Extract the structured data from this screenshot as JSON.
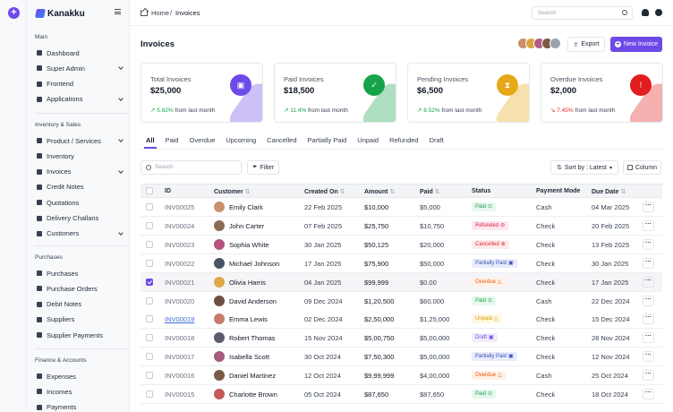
{
  "brand": {
    "name": "Kanakku"
  },
  "sidebar": {
    "sections": [
      {
        "title": "Main",
        "items": [
          {
            "label": "Dashboard",
            "chevron": false
          },
          {
            "label": "Super Admin",
            "chevron": true
          },
          {
            "label": "Frontend",
            "chevron": false
          },
          {
            "label": "Applications",
            "chevron": true
          }
        ]
      },
      {
        "title": "Inventory & Sales",
        "items": [
          {
            "label": "Product / Services",
            "chevron": true
          },
          {
            "label": "Inventory",
            "chevron": false
          },
          {
            "label": "Invoices",
            "chevron": true
          },
          {
            "label": "Credit Notes",
            "chevron": false
          },
          {
            "label": "Quotations",
            "chevron": false
          },
          {
            "label": "Delivery Challans",
            "chevron": false
          },
          {
            "label": "Customers",
            "chevron": true
          }
        ]
      },
      {
        "title": "Purchases",
        "items": [
          {
            "label": "Purchases",
            "chevron": false
          },
          {
            "label": "Purchase Orders",
            "chevron": false
          },
          {
            "label": "Debit Notes",
            "chevron": false
          },
          {
            "label": "Suppliers",
            "chevron": false
          },
          {
            "label": "Supplier Payments",
            "chevron": false
          }
        ]
      },
      {
        "title": "Finance & Accounts",
        "items": [
          {
            "label": "Expenses",
            "chevron": false
          },
          {
            "label": "Incomes",
            "chevron": false
          },
          {
            "label": "Payments",
            "chevron": false
          }
        ]
      }
    ]
  },
  "topbar": {
    "breadcrumb": {
      "home": "Home",
      "separator": "/",
      "current": "Invoices"
    },
    "search_placeholder": "Search"
  },
  "page": {
    "title": "Invoices",
    "export_label": "Export",
    "new_label": "New Invoice"
  },
  "cards": [
    {
      "label": "Total Invoices",
      "amount": "$25,000",
      "delta": "5.62%",
      "delta_text": "from last month",
      "trend": "up",
      "color": "#6d4ae8",
      "glyph": "▣"
    },
    {
      "label": "Paid Invoices",
      "amount": "$18,500",
      "delta": "11.4%",
      "delta_text": "from last month",
      "trend": "up",
      "color": "#16a34a",
      "glyph": "✓"
    },
    {
      "label": "Pending Invoices",
      "amount": "$6,500",
      "delta": "8.52%",
      "delta_text": "from last month",
      "trend": "up",
      "color": "#e6a817",
      "glyph": "⧗"
    },
    {
      "label": "Overdue Invoices",
      "amount": "$2,000",
      "delta": "7.45%",
      "delta_text": "from last month",
      "trend": "down",
      "color": "#e11d1d",
      "glyph": "!"
    }
  ],
  "tabs": [
    "All",
    "Paid",
    "Overdue",
    "Upcoming",
    "Cancelled",
    "Partially Paid",
    "Unpaid",
    "Refunded",
    "Draft"
  ],
  "toolbar": {
    "search_placeholder": "Search",
    "filter_label": "Filter",
    "sort_label": "Sort by : Latest",
    "column_label": "Column"
  },
  "table": {
    "headers": [
      "ID",
      "Customer",
      "Created On",
      "Amount",
      "Paid",
      "Status",
      "Payment Mode",
      "Due Date"
    ],
    "rows": [
      {
        "id": "INV00025",
        "customer": "Emily Clark",
        "created": "22 Feb 2025",
        "amount": "$10,000",
        "paid": "$5,000",
        "status": "Paid",
        "status_type": "paid",
        "mode": "Cash",
        "due": "04 Mar 2025",
        "avatar": "#c9916b"
      },
      {
        "id": "INV00024",
        "customer": "John Carter",
        "created": "07 Feb 2025",
        "amount": "$25,750",
        "paid": "$10,750",
        "status": "Refunded",
        "status_type": "refunded",
        "mode": "Check",
        "due": "20 Feb 2025",
        "avatar": "#8a6b54"
      },
      {
        "id": "INV00023",
        "customer": "Sophia White",
        "created": "30 Jan 2025",
        "amount": "$50,125",
        "paid": "$20,000",
        "status": "Cancelled",
        "status_type": "cancelled",
        "mode": "Check",
        "due": "13 Feb 2025",
        "avatar": "#b4547a"
      },
      {
        "id": "INV00022",
        "customer": "Michael Johnson",
        "created": "17 Jan 2025",
        "amount": "$75,900",
        "paid": "$50,000",
        "status": "Partially Paid",
        "status_type": "partial",
        "mode": "Check",
        "due": "30 Jan 2025",
        "avatar": "#4b5563"
      },
      {
        "id": "INV00021",
        "customer": "Olivia Harris",
        "created": "04 Jan 2025",
        "amount": "$99,999",
        "paid": "$0.00",
        "status": "Overdue",
        "status_type": "overdue",
        "mode": "Check",
        "due": "17 Jan 2025",
        "avatar": "#e0a84a",
        "selected": true
      },
      {
        "id": "INV00020",
        "customer": "David Anderson",
        "created": "09 Dec 2024",
        "amount": "$1,20,500",
        "paid": "$60,000",
        "status": "Paid",
        "status_type": "paid",
        "mode": "Cash",
        "due": "22 Dec 2024",
        "avatar": "#6b4f3f"
      },
      {
        "id": "INV00019",
        "customer": "Emma Lewis",
        "created": "02 Dec 2024",
        "amount": "$2,50,000",
        "paid": "$1,25,000",
        "status": "Unpaid",
        "status_type": "unpaid",
        "mode": "Check",
        "due": "15 Dec 2024",
        "avatar": "#c77c6a",
        "link": true
      },
      {
        "id": "INV00018",
        "customer": "Robert Thomas",
        "created": "15 Nov 2024",
        "amount": "$5,00,750",
        "paid": "$5,00,000",
        "status": "Draft",
        "status_type": "draft",
        "mode": "Check",
        "due": "28 Nov 2024",
        "avatar": "#5b5b6b"
      },
      {
        "id": "INV00017",
        "customer": "Isabella Scott",
        "created": "30 Oct 2024",
        "amount": "$7,50,300",
        "paid": "$5,00,000",
        "status": "Partially Paid",
        "status_type": "partial",
        "mode": "Check",
        "due": "12 Nov 2024",
        "avatar": "#a35c7a"
      },
      {
        "id": "INV00016",
        "customer": "Daniel Martinez",
        "created": "12 Oct 2024",
        "amount": "$9,99,999",
        "paid": "$4,00,000",
        "status": "Overdue",
        "status_type": "overdue",
        "mode": "Cash",
        "due": "25 Oct 2024",
        "avatar": "#7a5a48"
      },
      {
        "id": "INV00015",
        "customer": "Charlotte Brown",
        "created": "05 Oct 2024",
        "amount": "$87,650",
        "paid": "$87,650",
        "status": "Paid",
        "status_type": "paid",
        "mode": "Check",
        "due": "18 Oct 2024",
        "avatar": "#c45a5a"
      }
    ]
  }
}
